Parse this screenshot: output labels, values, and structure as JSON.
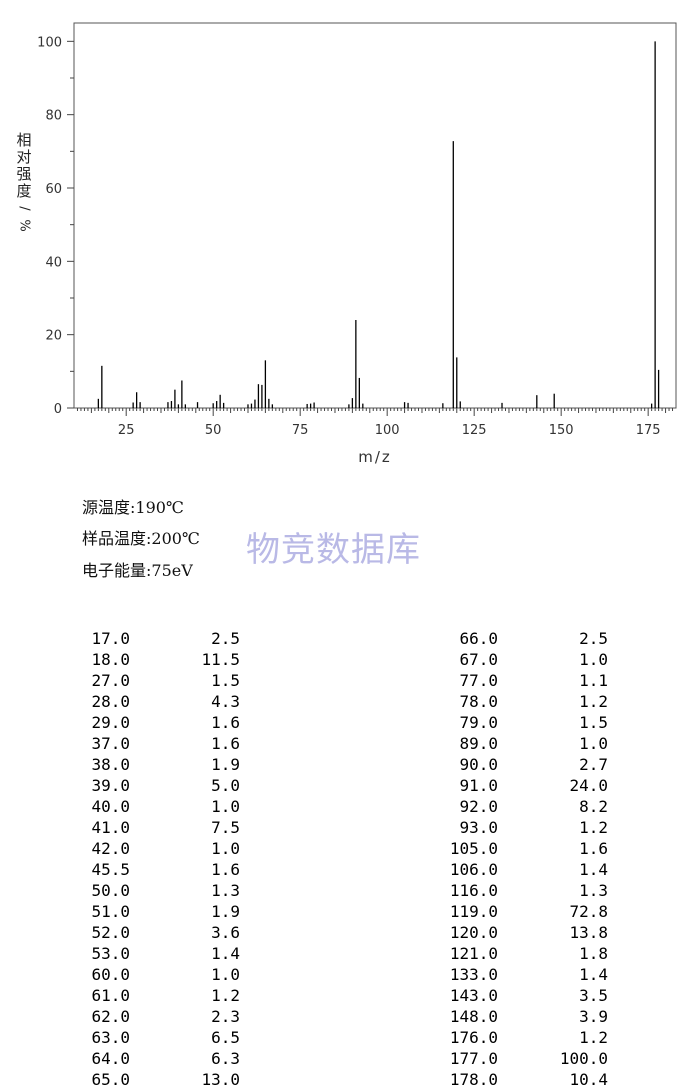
{
  "chart_data": {
    "type": "bar",
    "xlabel": "m/z",
    "ylabel": "相对强度/%",
    "xlim": [
      10,
      183
    ],
    "ylim": [
      0,
      105
    ],
    "x_ticks": [
      25,
      50,
      75,
      100,
      125,
      150,
      175
    ],
    "y_ticks": [
      0,
      20,
      40,
      60,
      80,
      100
    ],
    "grid": false,
    "bar_color": "#000000",
    "peaks": [
      [
        17.0,
        2.5
      ],
      [
        18.0,
        11.5
      ],
      [
        27.0,
        1.5
      ],
      [
        28.0,
        4.3
      ],
      [
        29.0,
        1.6
      ],
      [
        37.0,
        1.6
      ],
      [
        38.0,
        1.9
      ],
      [
        39.0,
        5.0
      ],
      [
        40.0,
        1.0
      ],
      [
        41.0,
        7.5
      ],
      [
        42.0,
        1.0
      ],
      [
        45.5,
        1.6
      ],
      [
        50.0,
        1.3
      ],
      [
        51.0,
        1.9
      ],
      [
        52.0,
        3.6
      ],
      [
        53.0,
        1.4
      ],
      [
        60.0,
        1.0
      ],
      [
        61.0,
        1.2
      ],
      [
        62.0,
        2.3
      ],
      [
        63.0,
        6.5
      ],
      [
        64.0,
        6.3
      ],
      [
        65.0,
        13.0
      ],
      [
        66.0,
        2.5
      ],
      [
        67.0,
        1.0
      ],
      [
        77.0,
        1.1
      ],
      [
        78.0,
        1.2
      ],
      [
        79.0,
        1.5
      ],
      [
        89.0,
        1.0
      ],
      [
        90.0,
        2.7
      ],
      [
        91.0,
        24.0
      ],
      [
        92.0,
        8.2
      ],
      [
        93.0,
        1.2
      ],
      [
        105.0,
        1.6
      ],
      [
        106.0,
        1.4
      ],
      [
        116.0,
        1.3
      ],
      [
        119.0,
        72.8
      ],
      [
        120.0,
        13.8
      ],
      [
        121.0,
        1.8
      ],
      [
        133.0,
        1.4
      ],
      [
        143.0,
        3.5
      ],
      [
        148.0,
        3.9
      ],
      [
        176.0,
        1.2
      ],
      [
        177.0,
        100.0
      ],
      [
        178.0,
        10.4
      ]
    ]
  },
  "conditions": {
    "source_temp": "源温度:190℃",
    "sample_temp": "样品温度:200℃",
    "electron_energy": "电子能量:75eV"
  },
  "watermark": "物竞数据库",
  "peak_table": {
    "left": [
      [
        "17.0",
        "2.5"
      ],
      [
        "18.0",
        "11.5"
      ],
      [
        "27.0",
        "1.5"
      ],
      [
        "28.0",
        "4.3"
      ],
      [
        "29.0",
        "1.6"
      ],
      [
        "37.0",
        "1.6"
      ],
      [
        "38.0",
        "1.9"
      ],
      [
        "39.0",
        "5.0"
      ],
      [
        "40.0",
        "1.0"
      ],
      [
        "41.0",
        "7.5"
      ],
      [
        "42.0",
        "1.0"
      ],
      [
        "45.5",
        "1.6"
      ],
      [
        "50.0",
        "1.3"
      ],
      [
        "51.0",
        "1.9"
      ],
      [
        "52.0",
        "3.6"
      ],
      [
        "53.0",
        "1.4"
      ],
      [
        "60.0",
        "1.0"
      ],
      [
        "61.0",
        "1.2"
      ],
      [
        "62.0",
        "2.3"
      ],
      [
        "63.0",
        "6.5"
      ],
      [
        "64.0",
        "6.3"
      ],
      [
        "65.0",
        "13.0"
      ]
    ],
    "right": [
      [
        "66.0",
        "2.5"
      ],
      [
        "67.0",
        "1.0"
      ],
      [
        "77.0",
        "1.1"
      ],
      [
        "78.0",
        "1.2"
      ],
      [
        "79.0",
        "1.5"
      ],
      [
        "89.0",
        "1.0"
      ],
      [
        "90.0",
        "2.7"
      ],
      [
        "91.0",
        "24.0"
      ],
      [
        "92.0",
        "8.2"
      ],
      [
        "93.0",
        "1.2"
      ],
      [
        "105.0",
        "1.6"
      ],
      [
        "106.0",
        "1.4"
      ],
      [
        "116.0",
        "1.3"
      ],
      [
        "119.0",
        "72.8"
      ],
      [
        "120.0",
        "13.8"
      ],
      [
        "121.0",
        "1.8"
      ],
      [
        "133.0",
        "1.4"
      ],
      [
        "143.0",
        "3.5"
      ],
      [
        "148.0",
        "3.9"
      ],
      [
        "176.0",
        "1.2"
      ],
      [
        "177.0",
        "100.0"
      ],
      [
        "178.0",
        "10.4"
      ]
    ]
  }
}
